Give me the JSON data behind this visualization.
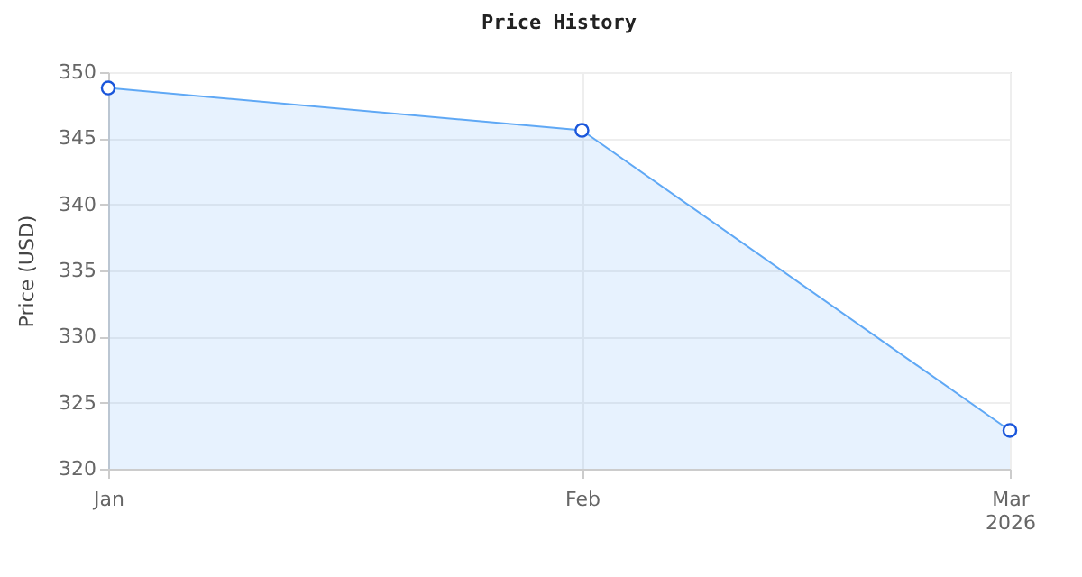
{
  "chart_data": {
    "type": "area",
    "title": "Price History",
    "ylabel": "Price (USD)",
    "x": [
      "2026-01",
      "2026-02",
      "2026-03"
    ],
    "series": [
      {
        "color": "#5fa8f5",
        "values": [
          348.8,
          345.6,
          322.9
        ]
      }
    ],
    "xlim": [
      "2026-01",
      "2026-03"
    ],
    "xticks": [
      {
        "value": "2026-01",
        "label": "Jan"
      },
      {
        "value": "2026-02",
        "label": "Feb"
      },
      {
        "value": "2026-03",
        "label": "Mar\n2026"
      }
    ],
    "ylim": [
      320,
      350
    ],
    "yticks": [
      320,
      325,
      330,
      335,
      340,
      345,
      350
    ],
    "grid": true,
    "marker": "circle",
    "line_style": "solid"
  }
}
